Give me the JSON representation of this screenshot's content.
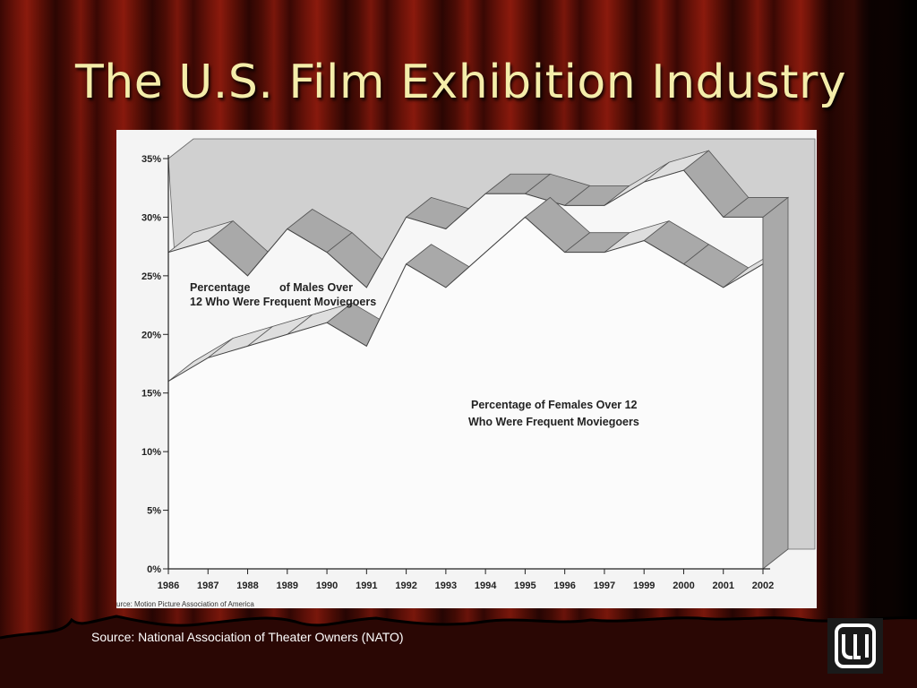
{
  "slide": {
    "title": "The U.S. Film Exhibition Industry",
    "source": "Source: National Association of Theater Owners (NATO)"
  },
  "logo": {
    "text": "ULI"
  },
  "colors": {
    "title": "#f4edaa",
    "background": "#6e1309",
    "chart_face": "#f4f4f4",
    "band_top": "#dedede",
    "band_side": "#a9a9a9",
    "wall": "#d0d0d0"
  },
  "chart_data": {
    "type": "area",
    "categories": [
      "1986",
      "1987",
      "1988",
      "1989",
      "1990",
      "1991",
      "1992",
      "1993",
      "1994",
      "1995",
      "1996",
      "1997",
      "1999",
      "2000",
      "2001",
      "2002"
    ],
    "series": [
      {
        "name": "Percentage of Males Over 12 Who Were Frequent Moviegoers",
        "values": [
          27,
          28,
          25,
          29,
          27,
          24,
          30,
          29,
          32,
          32,
          31,
          31,
          33,
          34,
          30,
          30
        ]
      },
      {
        "name": "Percentage of Females Over 12 Who Were Frequent Moviegoers",
        "values": [
          16,
          18,
          19,
          20,
          21,
          19,
          26,
          24,
          27,
          30,
          27,
          27,
          28,
          26,
          24,
          26
        ]
      }
    ],
    "yticks": [
      "0%",
      "5%",
      "10%",
      "15%",
      "20%",
      "25%",
      "30%",
      "35%"
    ],
    "ylim": [
      0,
      35
    ],
    "annotations": [
      "Percentage of Males Over 12 Who Were Frequent Moviegoers",
      "Percentage of Females Over 12 Who Were Frequent Moviegoers"
    ],
    "labels": {
      "males_line1": "Percentage",
      "males_line1b": "of Males Over",
      "males_line2": "12 Who Were Frequent Moviegoers",
      "females_line1": "Percentage of Females Over 12",
      "females_line2": "Who Were Frequent Moviegoers"
    },
    "source_note": "urce: Motion Picture Association of America",
    "grid": false,
    "style": "3d"
  }
}
